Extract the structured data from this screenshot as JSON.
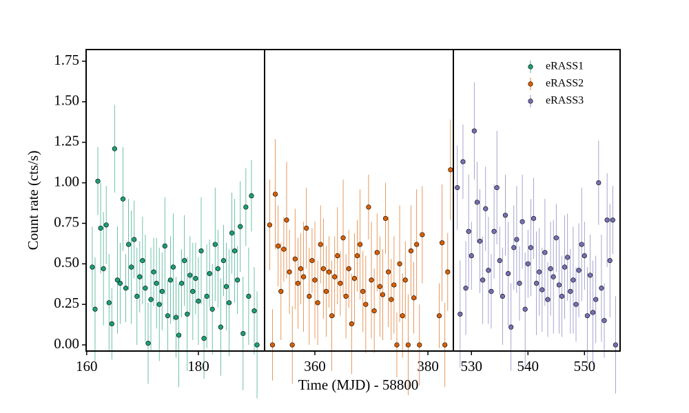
{
  "chart_data": {
    "type": "scatter",
    "xlabel": "Time (MJD) - 58800",
    "ylabel": "Count rate (cts/s)",
    "ylim": [
      -0.038,
      1.822
    ],
    "yticks": [
      {
        "value": 0,
        "label": "0.00"
      },
      {
        "value": 0.25,
        "label": "0.25"
      },
      {
        "value": 0.5,
        "label": "0.50"
      },
      {
        "value": 0.75,
        "label": "0.75"
      },
      {
        "value": 1,
        "label": "1.00"
      },
      {
        "value": 1.25,
        "label": "1.25"
      },
      {
        "value": 1.5,
        "label": "1.50"
      },
      {
        "value": 1.75,
        "label": "1.75"
      }
    ],
    "legend": "upper right",
    "panels": [
      {
        "xlim": [
          159.9,
          191.85
        ],
        "xticks": [
          160,
          180
        ],
        "series": [
          {
            "name": "eRASS1",
            "color": "#1b9e77",
            "x": [
              161.0,
              161.5,
              162.0,
              162.5,
              163.0,
              163.5,
              164.0,
              164.5,
              165.0,
              165.5,
              166.0,
              166.5,
              167.0,
              167.5,
              168.0,
              168.5,
              169.0,
              169.5,
              170.0,
              170.5,
              171.0,
              171.5,
              172.0,
              172.5,
              173.0,
              173.5,
              174.0,
              174.5,
              175.0,
              175.5,
              176.0,
              176.5,
              177.0,
              177.5,
              178.0,
              178.5,
              179.0,
              179.5,
              180.0,
              180.5,
              181.0,
              181.5,
              182.0,
              182.5,
              183.0,
              183.5,
              184.0,
              184.5,
              185.0,
              185.5,
              186.0,
              186.5,
              187.0,
              187.5,
              188.0,
              188.5,
              189.0,
              189.5,
              190.0,
              190.5
            ],
            "values": [
              0.48,
              0.22,
              1.01,
              0.72,
              0.47,
              0.74,
              0.26,
              0.13,
              1.21,
              0.4,
              0.38,
              0.9,
              0.35,
              0.62,
              0.48,
              0.65,
              0.3,
              0.42,
              0.52,
              0.35,
              0.01,
              0.28,
              0.45,
              0.38,
              0.25,
              0.33,
              0.61,
              0.18,
              0.4,
              0.48,
              0.17,
              0.06,
              0.38,
              0.52,
              0.19,
              0.43,
              0.33,
              0.41,
              0.27,
              0.58,
              0.04,
              0.3,
              0.44,
              0.22,
              0.62,
              0.47,
              0.11,
              0.52,
              0.36,
              0.26,
              0.69,
              0.58,
              0.4,
              0.73,
              0.07,
              0.85,
              0.3,
              0.92,
              0.21,
              0.0
            ],
            "errors": [
              0.25,
              0.32,
              0.21,
              0.28,
              0.35,
              0.24,
              0.3,
              0.22,
              0.27,
              0.33,
              0.25,
              0.32,
              0.21,
              0.28,
              0.35,
              0.24,
              0.3,
              0.22,
              0.27,
              0.33,
              0.25,
              0.32,
              0.21,
              0.28,
              0.35,
              0.24,
              0.3,
              0.22,
              0.27,
              0.33,
              0.25,
              0.32,
              0.21,
              0.28,
              0.35,
              0.24,
              0.3,
              0.22,
              0.27,
              0.33,
              0.25,
              0.32,
              0.21,
              0.28,
              0.35,
              0.24,
              0.3,
              0.22,
              0.27,
              0.33,
              0.25,
              0.32,
              0.21,
              0.28,
              0.35,
              0.24,
              0.3,
              0.22,
              0.27,
              0.33
            ]
          }
        ]
      },
      {
        "xlim": [
          351.1,
          384.5
        ],
        "xticks": [
          360,
          380
        ],
        "series": [
          {
            "name": "eRASS2",
            "color": "#d95f02",
            "x": [
              352.0,
              352.5,
              353.0,
              353.5,
              354.0,
              354.5,
              355.0,
              355.5,
              356.0,
              356.5,
              357.0,
              357.5,
              358.0,
              358.5,
              359.0,
              359.5,
              360.0,
              360.5,
              361.0,
              361.5,
              362.0,
              362.5,
              363.0,
              363.5,
              364.0,
              364.5,
              365.0,
              365.5,
              366.0,
              366.5,
              367.0,
              367.5,
              368.0,
              368.5,
              369.0,
              369.5,
              370.0,
              370.5,
              371.0,
              371.5,
              372.0,
              372.5,
              373.0,
              373.5,
              374.0,
              374.5,
              375.0,
              375.5,
              376.0,
              376.5,
              377.0,
              377.5,
              378.0,
              378.5,
              379.0,
              382.0,
              382.5,
              383.0,
              383.5,
              384.0
            ],
            "values": [
              0.74,
              0.0,
              0.93,
              0.61,
              0.33,
              0.59,
              0.77,
              0.45,
              0.0,
              0.53,
              0.38,
              0.47,
              0.42,
              0.72,
              0.3,
              0.52,
              0.4,
              0.26,
              0.62,
              0.47,
              0.33,
              0.45,
              0.18,
              0.42,
              0.55,
              0.38,
              0.66,
              0.3,
              0.47,
              0.13,
              0.41,
              0.55,
              0.62,
              0.33,
              0.25,
              0.85,
              0.4,
              0.21,
              0.57,
              0.36,
              0.31,
              0.78,
              0.45,
              0.28,
              0.37,
              0.0,
              0.5,
              0.18,
              0.4,
              0.0,
              0.58,
              0.29,
              0.62,
              0.0,
              0.68,
              0.18,
              0.63,
              0.0,
              0.45,
              1.08
            ],
            "errors": [
              0.28,
              0.22,
              0.34,
              0.25,
              0.3,
              0.2,
              0.36,
              0.26,
              0.24,
              0.31,
              0.28,
              0.22,
              0.34,
              0.25,
              0.3,
              0.2,
              0.36,
              0.26,
              0.24,
              0.31,
              0.28,
              0.22,
              0.34,
              0.25,
              0.3,
              0.2,
              0.36,
              0.26,
              0.24,
              0.31,
              0.28,
              0.22,
              0.34,
              0.25,
              0.3,
              0.2,
              0.36,
              0.26,
              0.24,
              0.31,
              0.28,
              0.22,
              0.34,
              0.25,
              0.3,
              0.2,
              0.36,
              0.26,
              0.24,
              0.31,
              0.28,
              0.22,
              0.34,
              0.25,
              0.3,
              0.2,
              0.36,
              0.26,
              0.24,
              0.31
            ]
          }
        ]
      },
      {
        "xlim": [
          526.8,
          556.3
        ],
        "xticks": [
          530,
          540,
          550
        ],
        "series": [
          {
            "name": "eRASS3",
            "color": "#7570b3",
            "x": [
              527.5,
              528.0,
              528.5,
              529.0,
              529.5,
              530.0,
              530.5,
              531.0,
              531.5,
              532.0,
              532.5,
              533.0,
              533.5,
              534.0,
              534.5,
              535.0,
              535.5,
              536.0,
              536.5,
              537.0,
              537.5,
              538.0,
              538.5,
              539.0,
              539.5,
              540.0,
              540.5,
              541.0,
              541.5,
              542.0,
              542.5,
              543.0,
              543.5,
              544.0,
              544.5,
              545.0,
              545.5,
              546.0,
              546.5,
              547.0,
              547.5,
              548.0,
              548.5,
              549.0,
              549.5,
              550.0,
              550.5,
              551.0,
              551.5,
              552.0,
              552.5,
              553.0,
              553.5,
              554.0,
              554.5,
              555.0,
              555.5
            ],
            "values": [
              0.97,
              0.19,
              1.13,
              0.35,
              0.7,
              0.55,
              1.32,
              0.88,
              0.64,
              0.4,
              0.84,
              0.46,
              0.33,
              0.7,
              0.97,
              0.52,
              0.3,
              0.8,
              0.44,
              0.11,
              0.6,
              0.65,
              0.38,
              0.76,
              0.22,
              0.5,
              0.6,
              0.78,
              0.38,
              0.45,
              0.34,
              0.57,
              0.28,
              0.47,
              0.42,
              0.66,
              0.37,
              0.3,
              0.48,
              0.54,
              0.33,
              0.4,
              0.25,
              0.46,
              0.62,
              0.55,
              0.18,
              0.43,
              0.2,
              0.28,
              1.0,
              0.35,
              0.15,
              0.77,
              0.52,
              0.77,
              0.0
            ],
            "errors": [
              0.26,
              0.33,
              0.23,
              0.29,
              0.35,
              0.21,
              0.3,
              0.25,
              0.32,
              0.27,
              0.26,
              0.33,
              0.23,
              0.29,
              0.35,
              0.21,
              0.3,
              0.25,
              0.32,
              0.27,
              0.26,
              0.33,
              0.23,
              0.29,
              0.35,
              0.21,
              0.3,
              0.25,
              0.32,
              0.27,
              0.26,
              0.33,
              0.23,
              0.29,
              0.35,
              0.21,
              0.3,
              0.25,
              0.32,
              0.27,
              0.26,
              0.33,
              0.23,
              0.29,
              0.35,
              0.21,
              0.3,
              0.25,
              0.32,
              0.27,
              0.26,
              0.33,
              0.23,
              0.29,
              0.35,
              0.21,
              0.3
            ]
          }
        ]
      }
    ]
  }
}
